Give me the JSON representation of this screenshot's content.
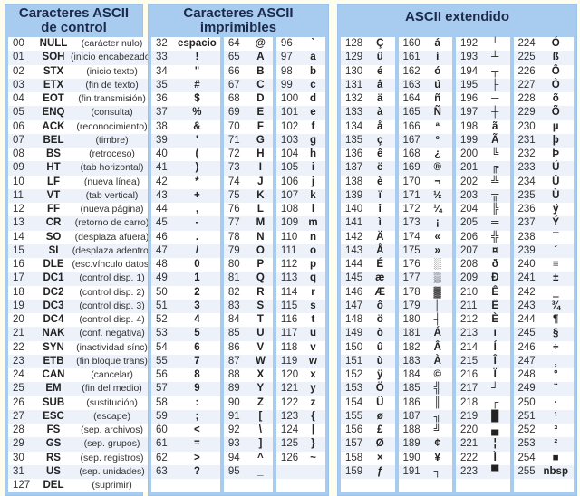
{
  "control": {
    "title_line1": "Caracteres ASCII",
    "title_line2": "de control",
    "rows": [
      {
        "code": "00",
        "sym": "NULL",
        "desc": "(carácter nulo)"
      },
      {
        "code": "01",
        "sym": "SOH",
        "desc": "(inicio encabezado)"
      },
      {
        "code": "02",
        "sym": "STX",
        "desc": "(inicio texto)"
      },
      {
        "code": "03",
        "sym": "ETX",
        "desc": "(fin de texto)"
      },
      {
        "code": "04",
        "sym": "EOT",
        "desc": "(fin transmisión)"
      },
      {
        "code": "05",
        "sym": "ENQ",
        "desc": "(consulta)"
      },
      {
        "code": "06",
        "sym": "ACK",
        "desc": "(reconocimiento)"
      },
      {
        "code": "07",
        "sym": "BEL",
        "desc": "(timbre)"
      },
      {
        "code": "08",
        "sym": "BS",
        "desc": "(retroceso)"
      },
      {
        "code": "09",
        "sym": "HT",
        "desc": "(tab horizontal)"
      },
      {
        "code": "10",
        "sym": "LF",
        "desc": "(nueva línea)"
      },
      {
        "code": "11",
        "sym": "VT",
        "desc": "(tab vertical)"
      },
      {
        "code": "12",
        "sym": "FF",
        "desc": "(nueva página)"
      },
      {
        "code": "13",
        "sym": "CR",
        "desc": "(retorno de carro)"
      },
      {
        "code": "14",
        "sym": "SO",
        "desc": "(desplaza afuera)"
      },
      {
        "code": "15",
        "sym": "SI",
        "desc": "(desplaza adentro)"
      },
      {
        "code": "16",
        "sym": "DLE",
        "desc": "(esc.vínculo datos)"
      },
      {
        "code": "17",
        "sym": "DC1",
        "desc": "(control disp. 1)"
      },
      {
        "code": "18",
        "sym": "DC2",
        "desc": "(control disp. 2)"
      },
      {
        "code": "19",
        "sym": "DC3",
        "desc": "(control disp. 3)"
      },
      {
        "code": "20",
        "sym": "DC4",
        "desc": "(control disp. 4)"
      },
      {
        "code": "21",
        "sym": "NAK",
        "desc": "(conf. negativa)"
      },
      {
        "code": "22",
        "sym": "SYN",
        "desc": "(inactividad sínc)"
      },
      {
        "code": "23",
        "sym": "ETB",
        "desc": "(fin bloque trans)"
      },
      {
        "code": "24",
        "sym": "CAN",
        "desc": "(cancelar)"
      },
      {
        "code": "25",
        "sym": "EM",
        "desc": "(fin del medio)"
      },
      {
        "code": "26",
        "sym": "SUB",
        "desc": "(sustitución)"
      },
      {
        "code": "27",
        "sym": "ESC",
        "desc": "(escape)"
      },
      {
        "code": "28",
        "sym": "FS",
        "desc": "(sep. archivos)"
      },
      {
        "code": "29",
        "sym": "GS",
        "desc": "(sep. grupos)"
      },
      {
        "code": "30",
        "sym": "RS",
        "desc": "(sep. registros)"
      },
      {
        "code": "31",
        "sym": "US",
        "desc": "(sep. unidades)"
      },
      {
        "code": "127",
        "sym": "DEL",
        "desc": "(suprimir)"
      }
    ]
  },
  "printable": {
    "title_line1": "Caracteres ASCII",
    "title_line2": "imprimibles",
    "columns": [
      [
        {
          "code": "32",
          "sym": "espacio"
        },
        {
          "code": "33",
          "sym": "!"
        },
        {
          "code": "34",
          "sym": "\""
        },
        {
          "code": "35",
          "sym": "#"
        },
        {
          "code": "36",
          "sym": "$"
        },
        {
          "code": "37",
          "sym": "%"
        },
        {
          "code": "38",
          "sym": "&"
        },
        {
          "code": "39",
          "sym": "'"
        },
        {
          "code": "40",
          "sym": "("
        },
        {
          "code": "41",
          "sym": ")"
        },
        {
          "code": "42",
          "sym": "*"
        },
        {
          "code": "43",
          "sym": "+"
        },
        {
          "code": "44",
          "sym": ","
        },
        {
          "code": "45",
          "sym": "-"
        },
        {
          "code": "46",
          "sym": "."
        },
        {
          "code": "47",
          "sym": "/"
        },
        {
          "code": "48",
          "sym": "0"
        },
        {
          "code": "49",
          "sym": "1"
        },
        {
          "code": "50",
          "sym": "2"
        },
        {
          "code": "51",
          "sym": "3"
        },
        {
          "code": "52",
          "sym": "4"
        },
        {
          "code": "53",
          "sym": "5"
        },
        {
          "code": "54",
          "sym": "6"
        },
        {
          "code": "55",
          "sym": "7"
        },
        {
          "code": "56",
          "sym": "8"
        },
        {
          "code": "57",
          "sym": "9"
        },
        {
          "code": "58",
          "sym": ":"
        },
        {
          "code": "59",
          "sym": ";"
        },
        {
          "code": "60",
          "sym": "<"
        },
        {
          "code": "61",
          "sym": "="
        },
        {
          "code": "62",
          "sym": ">"
        },
        {
          "code": "63",
          "sym": "?"
        }
      ],
      [
        {
          "code": "64",
          "sym": "@"
        },
        {
          "code": "65",
          "sym": "A"
        },
        {
          "code": "66",
          "sym": "B"
        },
        {
          "code": "67",
          "sym": "C"
        },
        {
          "code": "68",
          "sym": "D"
        },
        {
          "code": "69",
          "sym": "E"
        },
        {
          "code": "70",
          "sym": "F"
        },
        {
          "code": "71",
          "sym": "G"
        },
        {
          "code": "72",
          "sym": "H"
        },
        {
          "code": "73",
          "sym": "I"
        },
        {
          "code": "74",
          "sym": "J"
        },
        {
          "code": "75",
          "sym": "K"
        },
        {
          "code": "76",
          "sym": "L"
        },
        {
          "code": "77",
          "sym": "M"
        },
        {
          "code": "78",
          "sym": "N"
        },
        {
          "code": "79",
          "sym": "O"
        },
        {
          "code": "80",
          "sym": "P"
        },
        {
          "code": "81",
          "sym": "Q"
        },
        {
          "code": "82",
          "sym": "R"
        },
        {
          "code": "83",
          "sym": "S"
        },
        {
          "code": "84",
          "sym": "T"
        },
        {
          "code": "85",
          "sym": "U"
        },
        {
          "code": "86",
          "sym": "V"
        },
        {
          "code": "87",
          "sym": "W"
        },
        {
          "code": "88",
          "sym": "X"
        },
        {
          "code": "89",
          "sym": "Y"
        },
        {
          "code": "90",
          "sym": "Z"
        },
        {
          "code": "91",
          "sym": "["
        },
        {
          "code": "92",
          "sym": "\\"
        },
        {
          "code": "93",
          "sym": "]"
        },
        {
          "code": "94",
          "sym": "^"
        },
        {
          "code": "95",
          "sym": "_"
        }
      ],
      [
        {
          "code": "96",
          "sym": "`"
        },
        {
          "code": "97",
          "sym": "a"
        },
        {
          "code": "98",
          "sym": "b"
        },
        {
          "code": "99",
          "sym": "c"
        },
        {
          "code": "100",
          "sym": "d"
        },
        {
          "code": "101",
          "sym": "e"
        },
        {
          "code": "102",
          "sym": "f"
        },
        {
          "code": "103",
          "sym": "g"
        },
        {
          "code": "104",
          "sym": "h"
        },
        {
          "code": "105",
          "sym": "i"
        },
        {
          "code": "106",
          "sym": "j"
        },
        {
          "code": "107",
          "sym": "k"
        },
        {
          "code": "108",
          "sym": "l"
        },
        {
          "code": "109",
          "sym": "m"
        },
        {
          "code": "110",
          "sym": "n"
        },
        {
          "code": "111",
          "sym": "o"
        },
        {
          "code": "112",
          "sym": "p"
        },
        {
          "code": "113",
          "sym": "q"
        },
        {
          "code": "114",
          "sym": "r"
        },
        {
          "code": "115",
          "sym": "s"
        },
        {
          "code": "116",
          "sym": "t"
        },
        {
          "code": "117",
          "sym": "u"
        },
        {
          "code": "118",
          "sym": "v"
        },
        {
          "code": "119",
          "sym": "w"
        },
        {
          "code": "120",
          "sym": "x"
        },
        {
          "code": "121",
          "sym": "y"
        },
        {
          "code": "122",
          "sym": "z"
        },
        {
          "code": "123",
          "sym": "{"
        },
        {
          "code": "124",
          "sym": "|"
        },
        {
          "code": "125",
          "sym": "}"
        },
        {
          "code": "126",
          "sym": "~"
        }
      ]
    ]
  },
  "extended": {
    "title": "ASCII extendido",
    "columns": [
      [
        {
          "code": "128",
          "sym": "Ç"
        },
        {
          "code": "129",
          "sym": "ü"
        },
        {
          "code": "130",
          "sym": "é"
        },
        {
          "code": "131",
          "sym": "â"
        },
        {
          "code": "132",
          "sym": "ä"
        },
        {
          "code": "133",
          "sym": "à"
        },
        {
          "code": "134",
          "sym": "å"
        },
        {
          "code": "135",
          "sym": "ç"
        },
        {
          "code": "136",
          "sym": "ê"
        },
        {
          "code": "137",
          "sym": "ë"
        },
        {
          "code": "138",
          "sym": "è"
        },
        {
          "code": "139",
          "sym": "ï"
        },
        {
          "code": "140",
          "sym": "î"
        },
        {
          "code": "141",
          "sym": "ì"
        },
        {
          "code": "142",
          "sym": "Ä"
        },
        {
          "code": "143",
          "sym": "Å"
        },
        {
          "code": "144",
          "sym": "É"
        },
        {
          "code": "145",
          "sym": "æ"
        },
        {
          "code": "146",
          "sym": "Æ"
        },
        {
          "code": "147",
          "sym": "ô"
        },
        {
          "code": "148",
          "sym": "ö"
        },
        {
          "code": "149",
          "sym": "ò"
        },
        {
          "code": "150",
          "sym": "û"
        },
        {
          "code": "151",
          "sym": "ù"
        },
        {
          "code": "152",
          "sym": "ÿ"
        },
        {
          "code": "153",
          "sym": "Ö"
        },
        {
          "code": "154",
          "sym": "Ü"
        },
        {
          "code": "155",
          "sym": "ø"
        },
        {
          "code": "156",
          "sym": "£"
        },
        {
          "code": "157",
          "sym": "Ø"
        },
        {
          "code": "158",
          "sym": "×"
        },
        {
          "code": "159",
          "sym": "ƒ"
        }
      ],
      [
        {
          "code": "160",
          "sym": "á"
        },
        {
          "code": "161",
          "sym": "í"
        },
        {
          "code": "162",
          "sym": "ó"
        },
        {
          "code": "163",
          "sym": "ú"
        },
        {
          "code": "164",
          "sym": "ñ"
        },
        {
          "code": "165",
          "sym": "Ñ"
        },
        {
          "code": "166",
          "sym": "ª"
        },
        {
          "code": "167",
          "sym": "º"
        },
        {
          "code": "168",
          "sym": "¿"
        },
        {
          "code": "169",
          "sym": "®"
        },
        {
          "code": "170",
          "sym": "¬"
        },
        {
          "code": "171",
          "sym": "½"
        },
        {
          "code": "172",
          "sym": "¼"
        },
        {
          "code": "173",
          "sym": "¡"
        },
        {
          "code": "174",
          "sym": "«"
        },
        {
          "code": "175",
          "sym": "»"
        },
        {
          "code": "176",
          "sym": "░"
        },
        {
          "code": "177",
          "sym": "▒"
        },
        {
          "code": "178",
          "sym": "▓"
        },
        {
          "code": "179",
          "sym": "│"
        },
        {
          "code": "180",
          "sym": "┤"
        },
        {
          "code": "181",
          "sym": "Á"
        },
        {
          "code": "182",
          "sym": "Â"
        },
        {
          "code": "183",
          "sym": "À"
        },
        {
          "code": "184",
          "sym": "©"
        },
        {
          "code": "185",
          "sym": "╣"
        },
        {
          "code": "186",
          "sym": "║"
        },
        {
          "code": "187",
          "sym": "╗"
        },
        {
          "code": "188",
          "sym": "╝"
        },
        {
          "code": "189",
          "sym": "¢"
        },
        {
          "code": "190",
          "sym": "¥"
        },
        {
          "code": "191",
          "sym": "┐"
        }
      ],
      [
        {
          "code": "192",
          "sym": "└"
        },
        {
          "code": "193",
          "sym": "┴"
        },
        {
          "code": "194",
          "sym": "┬"
        },
        {
          "code": "195",
          "sym": "├"
        },
        {
          "code": "196",
          "sym": "─"
        },
        {
          "code": "197",
          "sym": "┼"
        },
        {
          "code": "198",
          "sym": "ã"
        },
        {
          "code": "199",
          "sym": "Ã"
        },
        {
          "code": "200",
          "sym": "╚"
        },
        {
          "code": "201",
          "sym": "╔"
        },
        {
          "code": "202",
          "sym": "╩"
        },
        {
          "code": "203",
          "sym": "╦"
        },
        {
          "code": "204",
          "sym": "╠"
        },
        {
          "code": "205",
          "sym": "═"
        },
        {
          "code": "206",
          "sym": "╬"
        },
        {
          "code": "207",
          "sym": "¤"
        },
        {
          "code": "208",
          "sym": "ð"
        },
        {
          "code": "209",
          "sym": "Ð"
        },
        {
          "code": "210",
          "sym": "Ê"
        },
        {
          "code": "211",
          "sym": "Ë"
        },
        {
          "code": "212",
          "sym": "È"
        },
        {
          "code": "213",
          "sym": "ı"
        },
        {
          "code": "214",
          "sym": "Í"
        },
        {
          "code": "215",
          "sym": "Î"
        },
        {
          "code": "216",
          "sym": "Ï"
        },
        {
          "code": "217",
          "sym": "┘"
        },
        {
          "code": "218",
          "sym": "┌"
        },
        {
          "code": "219",
          "sym": "█"
        },
        {
          "code": "220",
          "sym": "▄"
        },
        {
          "code": "221",
          "sym": "¦"
        },
        {
          "code": "222",
          "sym": "Ì"
        },
        {
          "code": "223",
          "sym": "▀"
        }
      ],
      [
        {
          "code": "224",
          "sym": "Ó"
        },
        {
          "code": "225",
          "sym": "ß"
        },
        {
          "code": "226",
          "sym": "Ô"
        },
        {
          "code": "227",
          "sym": "Ò"
        },
        {
          "code": "228",
          "sym": "õ"
        },
        {
          "code": "229",
          "sym": "Õ"
        },
        {
          "code": "230",
          "sym": "µ"
        },
        {
          "code": "231",
          "sym": "þ"
        },
        {
          "code": "232",
          "sym": "Þ"
        },
        {
          "code": "233",
          "sym": "Ú"
        },
        {
          "code": "234",
          "sym": "Û"
        },
        {
          "code": "235",
          "sym": "Ù"
        },
        {
          "code": "236",
          "sym": "ý"
        },
        {
          "code": "237",
          "sym": "Ý"
        },
        {
          "code": "238",
          "sym": "¯"
        },
        {
          "code": "239",
          "sym": "´"
        },
        {
          "code": "240",
          "sym": "≡"
        },
        {
          "code": "241",
          "sym": "±"
        },
        {
          "code": "242",
          "sym": "‗"
        },
        {
          "code": "243",
          "sym": "¾"
        },
        {
          "code": "244",
          "sym": "¶"
        },
        {
          "code": "245",
          "sym": "§"
        },
        {
          "code": "246",
          "sym": "÷"
        },
        {
          "code": "247",
          "sym": "¸"
        },
        {
          "code": "248",
          "sym": "°"
        },
        {
          "code": "249",
          "sym": "¨"
        },
        {
          "code": "250",
          "sym": "·"
        },
        {
          "code": "251",
          "sym": "¹"
        },
        {
          "code": "252",
          "sym": "³"
        },
        {
          "code": "253",
          "sym": "²"
        },
        {
          "code": "254",
          "sym": "■"
        },
        {
          "code": "255",
          "sym": "nbsp"
        }
      ]
    ]
  },
  "colors": {
    "page_background": "#fefcec",
    "header_blue": "#a8cbf0",
    "row_alt": "#edf2fa",
    "title_text": "#1c2a4a"
  }
}
